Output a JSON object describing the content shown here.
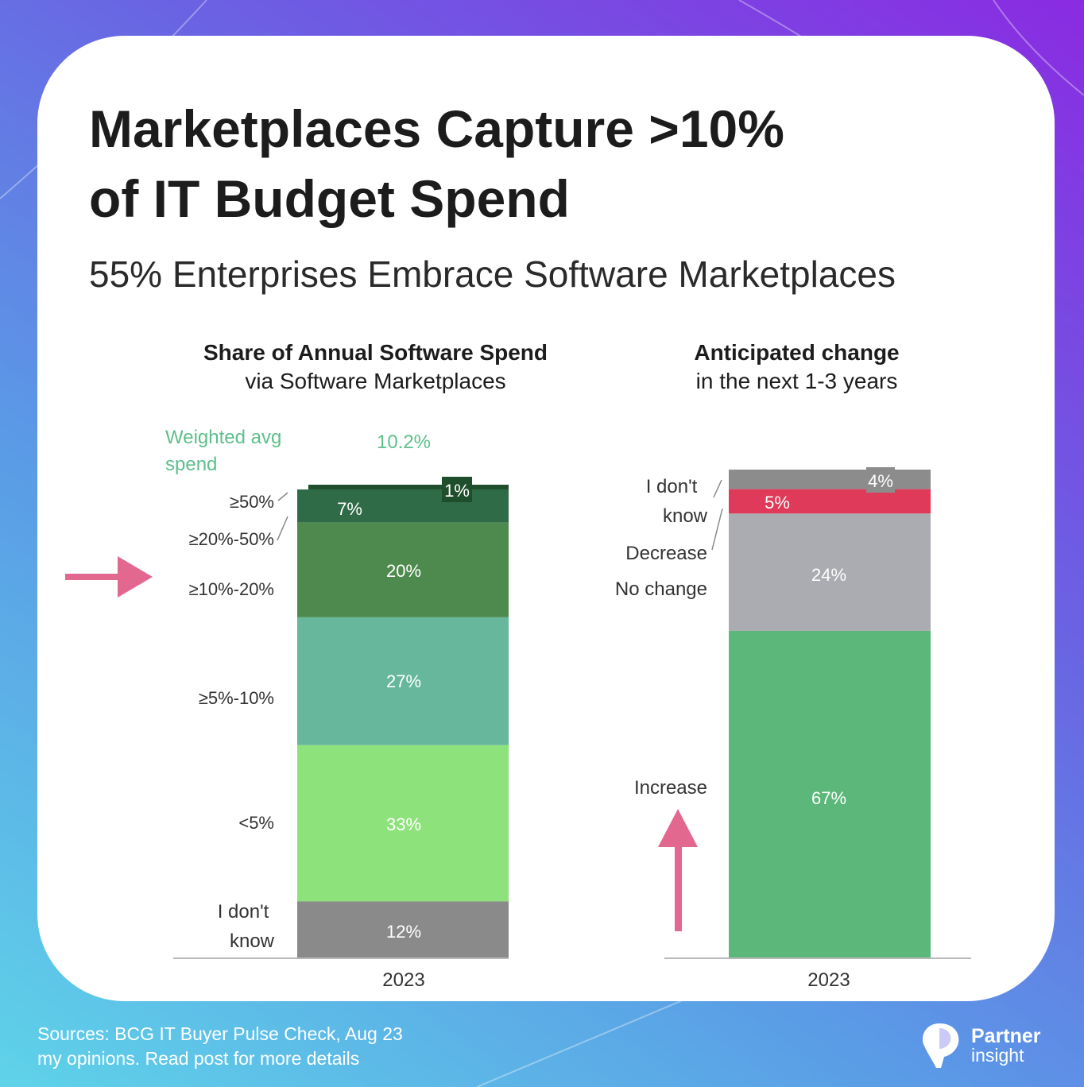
{
  "colors": {
    "card": "#ffffff",
    "arrow": "#e2688f",
    "ge50": "#1f4e2c",
    "p20_50": "#2f6b47",
    "p10_20": "#4e8a4e",
    "p5_10": "#66b79c",
    "lt5": "#8ee27b",
    "dont_know_gray": "#8a8a8a",
    "right_dont_know": "#8c8c8c",
    "decrease": "#e03a5a",
    "no_change": "#ababb2",
    "increase": "#5bb77a",
    "weighted_text": "#5dbf8a"
  },
  "header": {
    "title_line1": "Marketplaces Capture >10%",
    "title_line2": "of IT Budget Spend",
    "subtitle": "55% Enterprises Embrace Software Marketplaces"
  },
  "left_panel": {
    "title_bold": "Share of Annual Software Spend",
    "title_light": "via Software Marketplaces"
  },
  "right_panel": {
    "title_bold": "Anticipated change",
    "title_light": "in the next 1-3 years"
  },
  "chart_data": [
    {
      "type": "bar",
      "stacked": true,
      "categories": [
        "2023"
      ],
      "series": [
        {
          "name": "I don't know",
          "value": 12,
          "label": "12%"
        },
        {
          "name": "<5%",
          "value": 33,
          "label": "33%"
        },
        {
          "name": "≥5%-10%",
          "value": 27,
          "label": "27%"
        },
        {
          "name": "≥10%-20%",
          "value": 20,
          "label": "20%"
        },
        {
          "name": "≥20%-50%",
          "value": 7,
          "label": "7%"
        },
        {
          "name": "≥50%",
          "value": 1,
          "label": "1%"
        }
      ],
      "annotation": {
        "label": "Weighted avg spend",
        "value": "10.2%"
      },
      "highlighted_segment": "≥10%-20%"
    },
    {
      "type": "bar",
      "stacked": true,
      "categories": [
        "2023"
      ],
      "series": [
        {
          "name": "Increase",
          "value": 67,
          "label": "67%"
        },
        {
          "name": "No change",
          "value": 24,
          "label": "24%"
        },
        {
          "name": "Decrease",
          "value": 5,
          "label": "5%"
        },
        {
          "name": "I don't know",
          "value": 4,
          "label": "4%"
        }
      ],
      "highlighted_segment": "Increase"
    }
  ],
  "footer": {
    "line1": "Sources: BCG IT Buyer Pulse Check, Aug 23",
    "line2": "my opinions. Read  post for more details"
  },
  "brand": {
    "line1": "Partner",
    "line2": "insight"
  }
}
